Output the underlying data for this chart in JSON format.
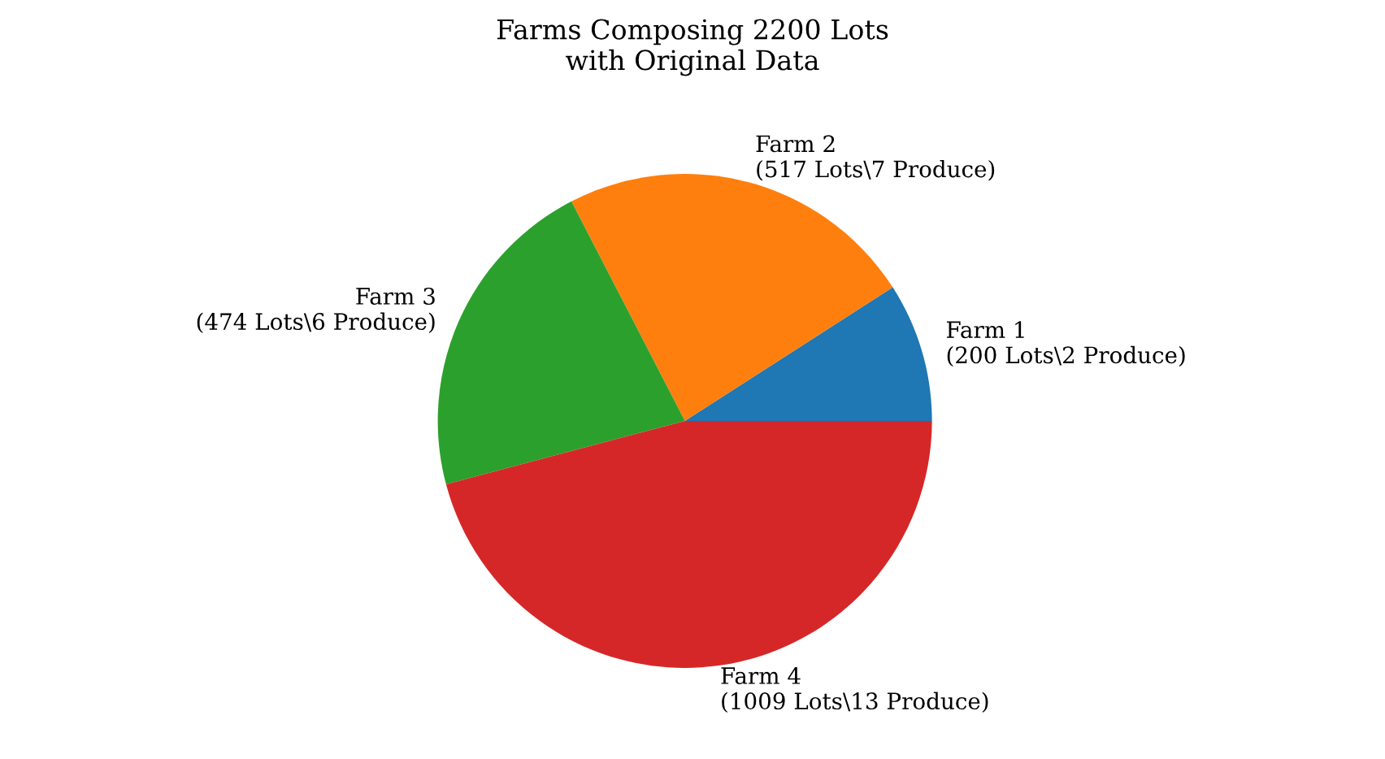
{
  "chart_data": {
    "type": "pie",
    "title": "Farms Composing 2200 Lots\nwith Original Data",
    "categories": [
      "Farm 1\n(200 Lots\\2 Produce)",
      "Farm 2\n(517 Lots\\7 Produce)",
      "Farm 3\n(474 Lots\\6 Produce)",
      "Farm 4\n(1009 Lots\\13 Produce)"
    ],
    "values": [
      200,
      517,
      474,
      1009
    ],
    "colors": [
      "#1f77b4",
      "#ff7f0e",
      "#2ca02c",
      "#d62728"
    ]
  }
}
